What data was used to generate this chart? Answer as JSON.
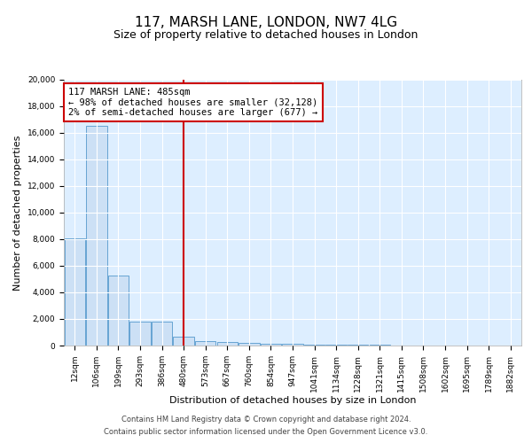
{
  "title1": "117, MARSH LANE, LONDON, NW7 4LG",
  "title2": "Size of property relative to detached houses in London",
  "xlabel": "Distribution of detached houses by size in London",
  "ylabel": "Number of detached properties",
  "bin_labels": [
    "12sqm",
    "106sqm",
    "199sqm",
    "293sqm",
    "386sqm",
    "480sqm",
    "573sqm",
    "667sqm",
    "760sqm",
    "854sqm",
    "947sqm",
    "1041sqm",
    "1134sqm",
    "1228sqm",
    "1321sqm",
    "1415sqm",
    "1508sqm",
    "1602sqm",
    "1695sqm",
    "1789sqm",
    "1882sqm"
  ],
  "bar_heights": [
    8100,
    16500,
    5300,
    1800,
    1800,
    700,
    350,
    250,
    200,
    150,
    150,
    80,
    60,
    50,
    40,
    30,
    20,
    15,
    10,
    8,
    5
  ],
  "bar_color": "#cce0f5",
  "bar_edge_color": "#5599cc",
  "vline_x_idx": 5,
  "vline_color": "#cc0000",
  "annotation_title": "117 MARSH LANE: 485sqm",
  "annotation_line1": "← 98% of detached houses are smaller (32,128)",
  "annotation_line2": "2% of semi-detached houses are larger (677) →",
  "annotation_box_color": "#ffffff",
  "annotation_box_edge": "#cc0000",
  "ylim": [
    0,
    20000
  ],
  "yticks": [
    0,
    2000,
    4000,
    6000,
    8000,
    10000,
    12000,
    14000,
    16000,
    18000,
    20000
  ],
  "footer1": "Contains HM Land Registry data © Crown copyright and database right 2024.",
  "footer2": "Contains public sector information licensed under the Open Government Licence v3.0.",
  "bg_color": "#ddeeff",
  "grid_color": "#ffffff",
  "title1_fontsize": 11,
  "title2_fontsize": 9,
  "tick_fontsize": 6.5,
  "ylabel_fontsize": 8,
  "xlabel_fontsize": 8,
  "ann_fontsize": 7.5,
  "footer_fontsize": 6
}
